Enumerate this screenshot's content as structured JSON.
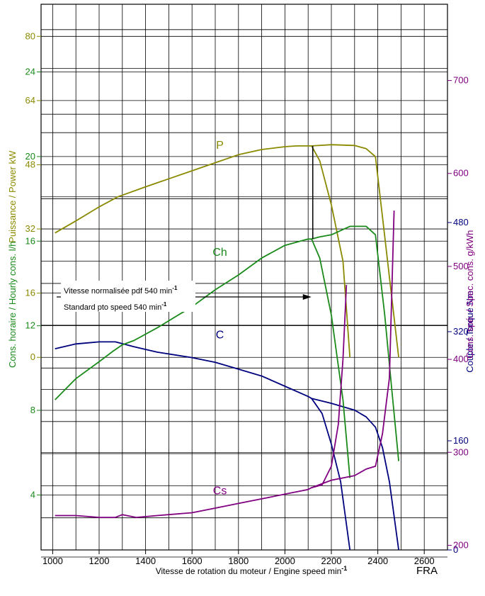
{
  "colors": {
    "power": "#8a8a00",
    "torque": "#00007f",
    "hourly": "#1a8a1a",
    "specific": "#800080",
    "grid": "#000000"
  },
  "footer": {
    "code": "FRA"
  },
  "chart_data": {
    "type": "line",
    "xlabel": "Vitesse de rotation du moteur / Engine speed min",
    "xlabel_sup": "-1",
    "x_ticks": [
      1000,
      1200,
      1400,
      1600,
      1800,
      2000,
      2200,
      2400,
      2600
    ],
    "xlim": [
      950,
      2700
    ],
    "annotation": {
      "line1": "Vitesse normalisée pdf 540 min",
      "line2": "Standard pto speed 540 min",
      "sup": "-1",
      "x": 2120
    },
    "axes": {
      "power": {
        "label": "Puissance / Power kW",
        "ticks": [
          0,
          16,
          32,
          48,
          64,
          80
        ],
        "range": [
          -48,
          88
        ]
      },
      "torque": {
        "label": "Couple / Torque Nm",
        "ticks": [
          0,
          160,
          320,
          480
        ],
        "range": [
          0,
          800
        ]
      },
      "hourly": {
        "label": "Cons. horaire / Hourly cons. l/h",
        "ticks": [
          4,
          8,
          12,
          16,
          20,
          24
        ],
        "range": [
          1.4,
          27.2
        ]
      },
      "specific": {
        "label": "Cons. spé. / Spec. cons. g/kWh",
        "ticks": [
          200,
          300,
          400,
          500,
          600,
          700
        ],
        "range": [
          195,
          782
        ]
      }
    },
    "series": [
      {
        "name": "P",
        "axis": "power",
        "label_at": [
          1720,
          52
        ],
        "x": [
          1010,
          1100,
          1200,
          1280,
          1400,
          1500,
          1600,
          1700,
          1800,
          1900,
          2000,
          2050,
          2115,
          2150,
          2200,
          2250,
          2280
        ],
        "y": [
          31,
          34,
          37.5,
          40,
          42.5,
          44.5,
          46.5,
          48.5,
          50.5,
          51.8,
          52.5,
          52.7,
          52.7,
          49,
          38,
          24,
          0
        ]
      },
      {
        "name": "P",
        "axis": "power",
        "x": [
          2115,
          2200,
          2300,
          2350,
          2390,
          2420,
          2450,
          2490
        ],
        "y": [
          52.7,
          53,
          52.8,
          52,
          50,
          35,
          20,
          0
        ]
      },
      {
        "name": "C",
        "axis": "torque",
        "label_at": [
          1720,
          310
        ],
        "x": [
          1010,
          1100,
          1200,
          1270,
          1350,
          1450,
          1600,
          1700,
          1800,
          1900,
          2000,
          2100,
          2115,
          2160,
          2200,
          2240,
          2280
        ],
        "y": [
          295,
          302,
          305,
          305,
          298,
          290,
          282,
          275,
          265,
          255,
          240,
          225,
          222,
          200,
          155,
          100,
          0
        ]
      },
      {
        "name": "C",
        "axis": "torque",
        "x": [
          2115,
          2200,
          2300,
          2350,
          2390,
          2420,
          2450,
          2490
        ],
        "y": [
          222,
          215,
          205,
          195,
          180,
          150,
          100,
          0
        ]
      },
      {
        "name": "Ch",
        "axis": "hourly",
        "label_at": [
          1720,
          15.3
        ],
        "x": [
          1010,
          1100,
          1200,
          1260,
          1300,
          1350,
          1450,
          1600,
          1700,
          1800,
          1900,
          2000,
          2100,
          2115,
          2150,
          2200,
          2250,
          2280
        ],
        "y": [
          8.5,
          9.5,
          10.3,
          10.8,
          11.1,
          11.3,
          11.9,
          12.9,
          13.7,
          14.4,
          15.2,
          15.8,
          16.1,
          16.1,
          15.2,
          12.5,
          8.5,
          4.8
        ]
      },
      {
        "name": "Ch",
        "axis": "hourly",
        "x": [
          2115,
          2150,
          2200,
          2280,
          2350,
          2390,
          2430,
          2460,
          2490
        ],
        "y": [
          16.1,
          16.2,
          16.3,
          16.7,
          16.7,
          16.3,
          12.5,
          9,
          5.6
        ]
      },
      {
        "name": "Cs",
        "axis": "specific",
        "label_at": [
          1720,
          255
        ],
        "x": [
          1010,
          1100,
          1200,
          1270,
          1300,
          1360,
          1450,
          1600,
          1700,
          1800,
          1900,
          2000,
          2100,
          2115,
          2160,
          2200,
          2230,
          2250,
          2265
        ],
        "y": [
          232,
          232,
          230,
          230,
          233,
          230,
          232,
          235,
          240,
          245,
          250,
          255,
          260,
          262,
          265,
          285,
          330,
          400,
          480
        ]
      },
      {
        "name": "Cs",
        "axis": "specific",
        "x": [
          2115,
          2200,
          2300,
          2350,
          2390,
          2420,
          2450,
          2470
        ],
        "y": [
          262,
          270,
          275,
          282,
          285,
          320,
          380,
          560
        ]
      }
    ]
  }
}
